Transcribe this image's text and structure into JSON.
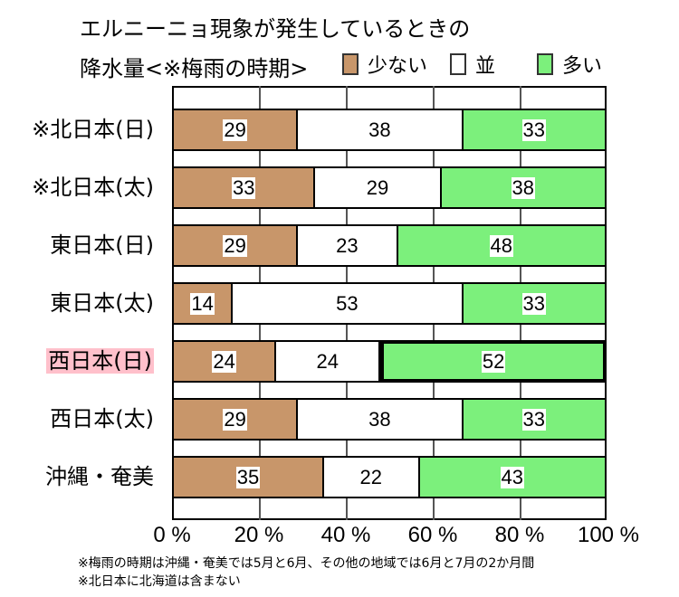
{
  "chart_data": {
    "type": "bar",
    "orientation": "horizontal-stacked-100",
    "title": "エルニーニョ現象が発生しているときの降水量<※梅雨の時期>",
    "title_lines": [
      "エルニーニョ現象が発生しているときの",
      "降水量<※梅雨の時期>"
    ],
    "categories": [
      "※北日本(日)",
      "※北日本(太)",
      "東日本(日)",
      "東日本(太)",
      "西日本(日)",
      "西日本(太)",
      "沖縄・奄美"
    ],
    "series": [
      {
        "name": "少ない",
        "color": "#c8966a",
        "values": [
          29,
          33,
          29,
          14,
          24,
          29,
          35
        ]
      },
      {
        "name": "並",
        "color": "#ffffff",
        "values": [
          38,
          29,
          23,
          53,
          24,
          38,
          22
        ]
      },
      {
        "name": "多い",
        "color": "#7cf07c",
        "values": [
          33,
          38,
          48,
          33,
          52,
          33,
          43
        ]
      }
    ],
    "xlabel": "",
    "ylabel": "",
    "xlim": [
      0,
      100
    ],
    "x_ticks": [
      "0 %",
      "20 %",
      "40 %",
      "60 %",
      "80 %",
      "100 %"
    ],
    "grid": true,
    "legend_position": "top-right",
    "highlight": {
      "category": "西日本(日)",
      "series": "多い",
      "value": 52
    },
    "annotations": [
      "※梅雨の時期は沖縄・奄美では5月と6月、その他の地域では6月と7月の2か月間",
      "※北日本に北海道は含まない"
    ]
  },
  "title": {
    "line1": "エルニーニョ現象が発生しているときの",
    "line2": "降水量<※梅雨の時期>"
  },
  "legend": [
    {
      "label": "少ない",
      "color": "#c8966a"
    },
    {
      "label": "並",
      "color": "#ffffff"
    },
    {
      "label": "多い",
      "color": "#7cf07c"
    }
  ],
  "rows": [
    {
      "label": "※北日本(日)",
      "low": "29",
      "mid": "38",
      "high": "33"
    },
    {
      "label": "※北日本(太)",
      "low": "33",
      "mid": "29",
      "high": "38"
    },
    {
      "label": "東日本(日)",
      "low": "29",
      "mid": "23",
      "high": "48"
    },
    {
      "label": "東日本(太)",
      "low": "14",
      "mid": "53",
      "high": "33"
    },
    {
      "label": "西日本(日)",
      "low": "24",
      "mid": "24",
      "high": "52"
    },
    {
      "label": "西日本(太)",
      "low": "29",
      "mid": "38",
      "high": "33"
    },
    {
      "label": "沖縄・奄美",
      "low": "35",
      "mid": "22",
      "high": "43"
    }
  ],
  "ticks": [
    "0 %",
    "20 %",
    "40 %",
    "60 %",
    "80 %",
    "100 %"
  ],
  "notes": [
    "※梅雨の時期は沖縄・奄美では5月と6月、その他の地域では6月と7月の2か月間",
    "※北日本に北海道は含まない"
  ]
}
